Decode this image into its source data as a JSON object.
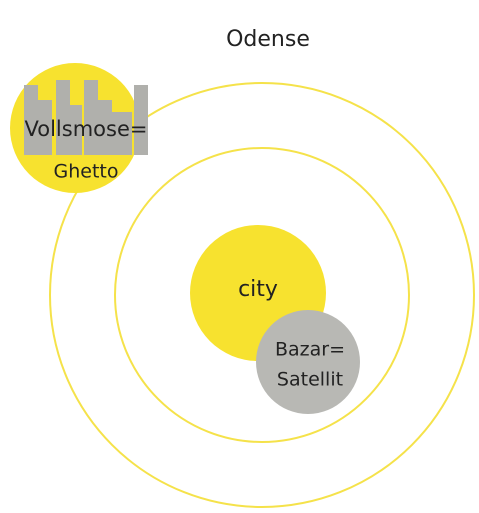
{
  "title": "Odense",
  "nodes": [
    {
      "lines": [
        "city"
      ]
    },
    {
      "lines": [
        "Bazar=",
        "Satellit"
      ]
    },
    {
      "lines": [
        "Vollsmose=",
        "Ghetto"
      ]
    }
  ]
}
